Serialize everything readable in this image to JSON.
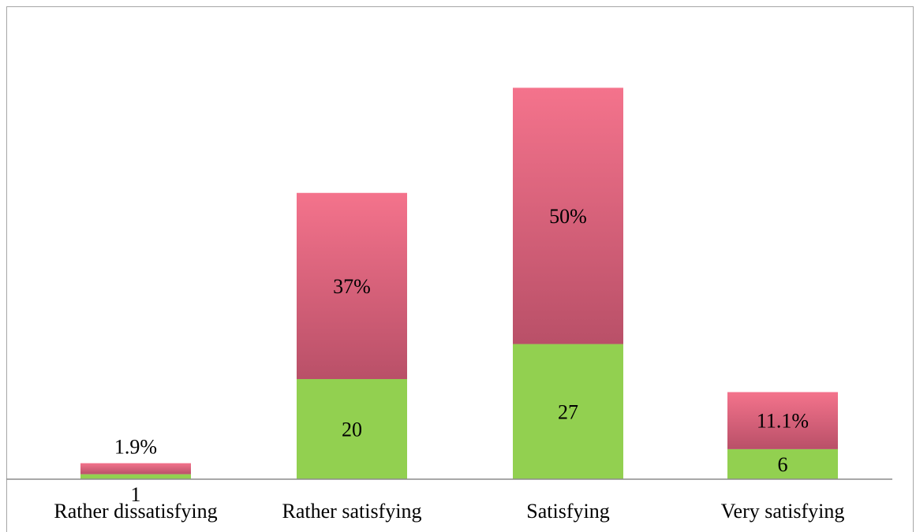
{
  "chart_data": {
    "type": "bar",
    "stacked": true,
    "categories": [
      "Rather dissatisfying",
      "Rather satisfying",
      "Satisfying",
      "Very satisfying"
    ],
    "series": [
      {
        "values": [
          1,
          20,
          27,
          6
        ],
        "labels": [
          "1",
          "20",
          "27",
          "6"
        ],
        "color": "#92d050"
      },
      {
        "values": [
          1.9,
          37,
          50,
          11.1
        ],
        "labels": [
          "1.9%",
          "37%",
          "50%",
          "11.1%"
        ],
        "colors": [
          "#f4738c",
          "#b95068"
        ]
      }
    ],
    "axis_color": "#8c8c8c",
    "grid": false,
    "legend": "none"
  }
}
